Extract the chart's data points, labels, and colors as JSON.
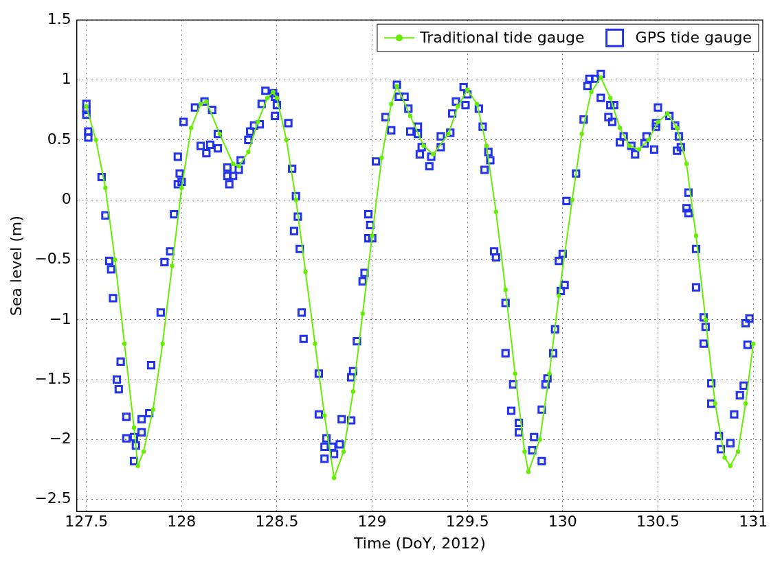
{
  "chart_data": {
    "type": "line",
    "xlabel": "Time (DoY, 2012)",
    "ylabel": "Sea level (m)",
    "xlim": [
      127.45,
      131.05
    ],
    "ylim": [
      -2.6,
      1.5
    ],
    "xticks": [
      127.5,
      128,
      128.5,
      129,
      129.5,
      130,
      130.5,
      131
    ],
    "yticks": [
      -2.5,
      -2,
      -1.5,
      -1,
      -0.5,
      0,
      0.5,
      1,
      1.5
    ],
    "grid": true,
    "legend": "top right",
    "series": [
      {
        "name": "Traditional tide gauge",
        "color": "#66ee00",
        "marker": "circle",
        "line_style": "solid",
        "x": [
          127.5,
          127.55,
          127.6,
          127.65,
          127.7,
          127.75,
          127.77,
          127.8,
          127.85,
          127.9,
          127.95,
          128.0,
          128.05,
          128.1,
          128.13,
          128.2,
          128.27,
          128.3,
          128.35,
          128.4,
          128.45,
          128.48,
          128.5,
          128.55,
          128.6,
          128.65,
          128.7,
          128.75,
          128.8,
          128.85,
          128.9,
          128.95,
          129.0,
          129.05,
          129.1,
          129.13,
          129.2,
          129.27,
          129.32,
          129.4,
          129.45,
          129.5,
          129.55,
          129.6,
          129.65,
          129.7,
          129.75,
          129.8,
          129.82,
          129.88,
          129.93,
          129.98,
          130.05,
          130.1,
          130.15,
          130.2,
          130.25,
          130.3,
          130.35,
          130.4,
          130.45,
          130.5,
          130.55,
          130.6,
          130.65,
          130.7,
          130.75,
          130.8,
          130.85,
          130.88,
          130.92,
          130.96,
          131.0
        ],
        "values": [
          0.78,
          0.5,
          0.1,
          -0.5,
          -1.2,
          -1.9,
          -2.22,
          -2.1,
          -1.75,
          -1.2,
          -0.55,
          0.1,
          0.6,
          0.8,
          0.82,
          0.55,
          0.3,
          0.28,
          0.4,
          0.65,
          0.85,
          0.9,
          0.85,
          0.5,
          0.0,
          -0.6,
          -1.2,
          -1.8,
          -2.32,
          -2.1,
          -1.6,
          -0.95,
          -0.3,
          0.35,
          0.8,
          0.95,
          0.7,
          0.45,
          0.38,
          0.55,
          0.78,
          0.92,
          0.8,
          0.45,
          -0.1,
          -0.75,
          -1.45,
          -2.1,
          -2.27,
          -2.0,
          -1.45,
          -0.8,
          0.0,
          0.55,
          0.9,
          1.02,
          0.85,
          0.6,
          0.45,
          0.42,
          0.5,
          0.65,
          0.72,
          0.6,
          0.3,
          -0.3,
          -1.0,
          -1.7,
          -2.15,
          -2.22,
          -2.1,
          -1.7,
          -1.2
        ]
      },
      {
        "name": "GPS tide gauge",
        "type": "scatter",
        "color": "#2233ee",
        "marker": "square",
        "x": [
          127.5,
          127.5,
          127.5,
          127.51,
          127.51,
          127.58,
          127.6,
          127.62,
          127.63,
          127.64,
          127.68,
          127.66,
          127.67,
          127.71,
          127.71,
          127.75,
          127.76,
          127.75,
          127.79,
          127.79,
          127.83,
          127.84,
          127.89,
          127.91,
          127.94,
          127.96,
          127.98,
          128.0,
          127.99,
          127.98,
          128.01,
          128.07,
          128.12,
          128.16,
          128.1,
          128.15,
          128.13,
          128.19,
          128.19,
          128.24,
          128.24,
          128.25,
          128.27,
          128.3,
          128.31,
          128.35,
          128.36,
          128.38,
          128.41,
          128.42,
          128.44,
          128.48,
          128.49,
          128.5,
          128.49,
          128.56,
          128.58,
          128.6,
          128.61,
          128.59,
          128.62,
          128.63,
          128.64,
          128.72,
          128.72,
          128.76,
          128.75,
          128.79,
          128.75,
          128.8,
          128.83,
          128.84,
          128.89,
          128.89,
          128.9,
          128.92,
          128.95,
          128.96,
          128.98,
          129.0,
          128.99,
          128.98,
          129.02,
          129.07,
          129.1,
          129.13,
          129.14,
          129.17,
          129.19,
          129.2,
          129.24,
          129.24,
          129.26,
          129.25,
          129.31,
          129.3,
          129.36,
          129.36,
          129.41,
          129.42,
          129.44,
          129.48,
          129.49,
          129.5,
          129.56,
          129.58,
          129.61,
          129.62,
          129.59,
          129.64,
          129.65,
          129.7,
          129.7,
          129.74,
          129.73,
          129.77,
          129.77,
          129.85,
          129.84,
          129.89,
          129.89,
          129.91,
          129.92,
          129.95,
          129.96,
          129.99,
          130.01,
          129.98,
          130.0,
          130.02,
          130.07,
          130.11,
          130.13,
          130.14,
          130.17,
          130.2,
          130.2,
          130.25,
          130.27,
          130.24,
          130.26,
          130.32,
          130.3,
          130.36,
          130.38,
          130.44,
          130.43,
          130.48,
          130.49,
          130.49,
          130.5,
          130.56,
          130.59,
          130.61,
          130.62,
          130.6,
          130.66,
          130.65,
          130.66,
          130.7,
          130.7,
          130.74,
          130.75,
          130.74,
          130.78,
          130.78,
          130.82,
          130.83,
          130.88,
          130.9,
          130.93,
          130.95,
          130.97,
          130.96,
          130.98
        ],
        "values": [
          0.8,
          0.75,
          0.71,
          0.57,
          0.52,
          0.19,
          -0.13,
          -0.51,
          -0.58,
          -0.82,
          -1.35,
          -1.5,
          -1.58,
          -1.81,
          -1.99,
          -1.98,
          -2.05,
          -2.18,
          -1.94,
          -1.83,
          -1.78,
          -1.38,
          -0.94,
          -0.52,
          -0.43,
          -0.12,
          0.13,
          0.15,
          0.22,
          0.36,
          0.65,
          0.77,
          0.82,
          0.75,
          0.45,
          0.46,
          0.39,
          0.55,
          0.43,
          0.27,
          0.2,
          0.13,
          0.2,
          0.25,
          0.33,
          0.5,
          0.57,
          0.62,
          0.63,
          0.8,
          0.91,
          0.89,
          0.86,
          0.79,
          0.7,
          0.64,
          0.26,
          0.03,
          -0.14,
          -0.26,
          -0.41,
          -0.94,
          -1.16,
          -1.45,
          -1.79,
          -1.99,
          -2.06,
          -2.06,
          -2.16,
          -2.12,
          -2.04,
          -1.83,
          -1.84,
          -1.48,
          -1.43,
          -1.18,
          -0.68,
          -0.61,
          -0.32,
          -0.32,
          -0.21,
          -0.12,
          0.32,
          0.69,
          0.58,
          0.96,
          0.86,
          0.86,
          0.76,
          0.57,
          0.61,
          0.55,
          0.44,
          0.38,
          0.36,
          0.28,
          0.44,
          0.53,
          0.56,
          0.72,
          0.82,
          0.94,
          0.79,
          0.88,
          0.76,
          0.61,
          0.4,
          0.33,
          0.25,
          -0.43,
          -0.48,
          -0.86,
          -1.28,
          -1.54,
          -1.76,
          -1.86,
          -1.94,
          -1.98,
          -2.09,
          -2.18,
          -1.75,
          -1.54,
          -1.49,
          -1.28,
          -1.08,
          -0.76,
          -0.71,
          -0.51,
          -0.45,
          -0.01,
          0.22,
          0.67,
          0.95,
          1.01,
          1.01,
          1.05,
          0.85,
          0.79,
          0.79,
          0.69,
          0.65,
          0.53,
          0.48,
          0.45,
          0.38,
          0.53,
          0.47,
          0.42,
          0.64,
          0.61,
          0.77,
          0.7,
          0.62,
          0.53,
          0.44,
          0.41,
          0.06,
          -0.07,
          -0.11,
          -0.41,
          -0.73,
          -0.98,
          -1.06,
          -1.2,
          -1.53,
          -1.7,
          -1.97,
          -2.08,
          -2.03,
          -1.79,
          -1.63,
          -1.55,
          -1.21,
          -1.03,
          -0.99
        ]
      }
    ]
  }
}
